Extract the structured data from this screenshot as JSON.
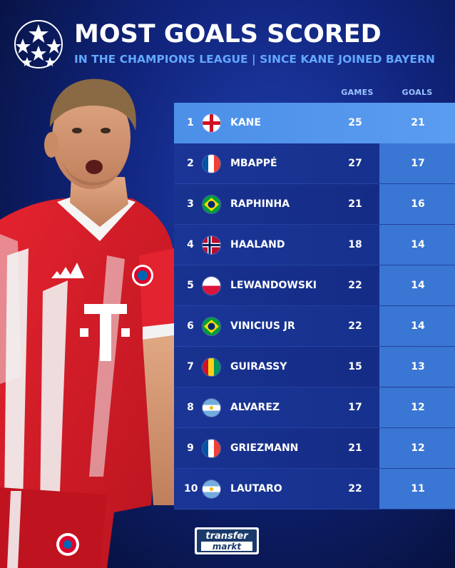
{
  "header": {
    "title": "MOST GOALS SCORED",
    "subtitle": "IN THE CHAMPIONS LEAGUE | SINCE KANE JOINED BAYERN"
  },
  "columns": {
    "games": "GAMES",
    "goals": "GOALS"
  },
  "rows": [
    {
      "rank": "1",
      "flag": "england",
      "name": "KANE",
      "games": "25",
      "goals": "21"
    },
    {
      "rank": "2",
      "flag": "france",
      "name": "MBAPPÉ",
      "games": "27",
      "goals": "17"
    },
    {
      "rank": "3",
      "flag": "brazil",
      "name": "RAPHINHA",
      "games": "21",
      "goals": "16"
    },
    {
      "rank": "4",
      "flag": "norway",
      "name": "HAALAND",
      "games": "18",
      "goals": "14"
    },
    {
      "rank": "5",
      "flag": "poland",
      "name": "LEWANDOWSKI",
      "games": "22",
      "goals": "14"
    },
    {
      "rank": "6",
      "flag": "brazil",
      "name": "VINICIUS JR",
      "games": "22",
      "goals": "14"
    },
    {
      "rank": "7",
      "flag": "guinea",
      "name": "GUIRASSY",
      "games": "15",
      "goals": "13"
    },
    {
      "rank": "8",
      "flag": "argentina",
      "name": "ALVAREZ",
      "games": "17",
      "goals": "12"
    },
    {
      "rank": "9",
      "flag": "france",
      "name": "GRIEZMANN",
      "games": "21",
      "goals": "12"
    },
    {
      "rank": "10",
      "flag": "argentina",
      "name": "LAUTARO",
      "games": "22",
      "goals": "11"
    }
  ],
  "brand": {
    "line1": "transfer",
    "line2": "markt"
  },
  "jersey": {
    "sponsor": "T",
    "crest": "FC BAYERN MÜNCHEN"
  },
  "colors": {
    "accent": "#63a8ff",
    "highlight_row": "#5a9cf0",
    "goals_cell": "#3a76d4",
    "jersey_red": "#d81f2a"
  }
}
